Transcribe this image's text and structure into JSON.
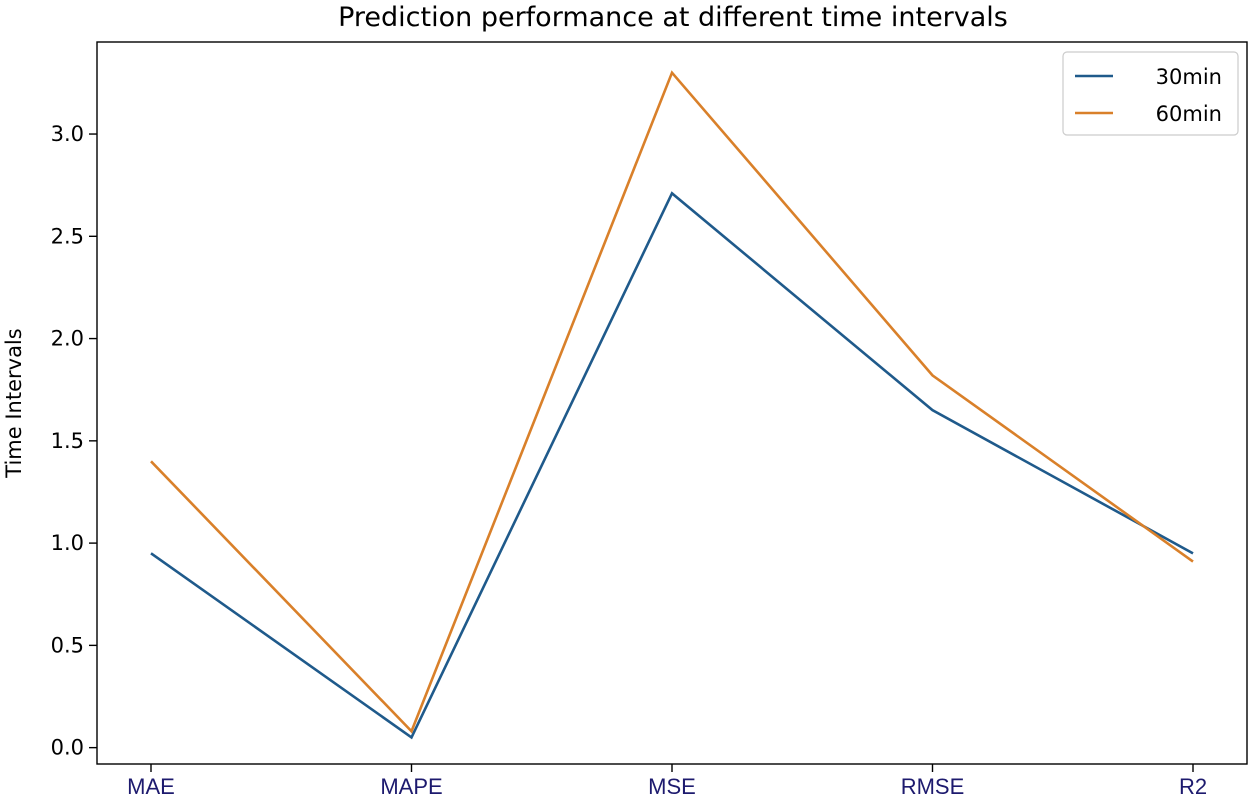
{
  "colors": {
    "series_30": "#1f5a8b",
    "series_60": "#d9802a",
    "axis": "#000000",
    "xtick_label": "#1d1a6e"
  },
  "chart_data": {
    "type": "line",
    "title": "Prediction performance at different time intervals",
    "xlabel": "",
    "ylabel": "Time Intervals",
    "categories": [
      "MAE",
      "MAPE",
      "MSE",
      "RMSE",
      "R2"
    ],
    "ylim": [
      -0.08,
      3.45
    ],
    "yticks": [
      0.0,
      0.5,
      1.0,
      1.5,
      2.0,
      2.5,
      3.0
    ],
    "ytick_labels": [
      "0.0",
      "0.5",
      "1.0",
      "1.5",
      "2.0",
      "2.5",
      "3.0"
    ],
    "grid": false,
    "legend_placement": "top-right",
    "series": [
      {
        "name": "30min",
        "values": [
          0.95,
          0.05,
          2.71,
          1.65,
          0.95
        ]
      },
      {
        "name": "60min",
        "values": [
          1.4,
          0.08,
          3.3,
          1.82,
          0.91
        ]
      }
    ]
  }
}
